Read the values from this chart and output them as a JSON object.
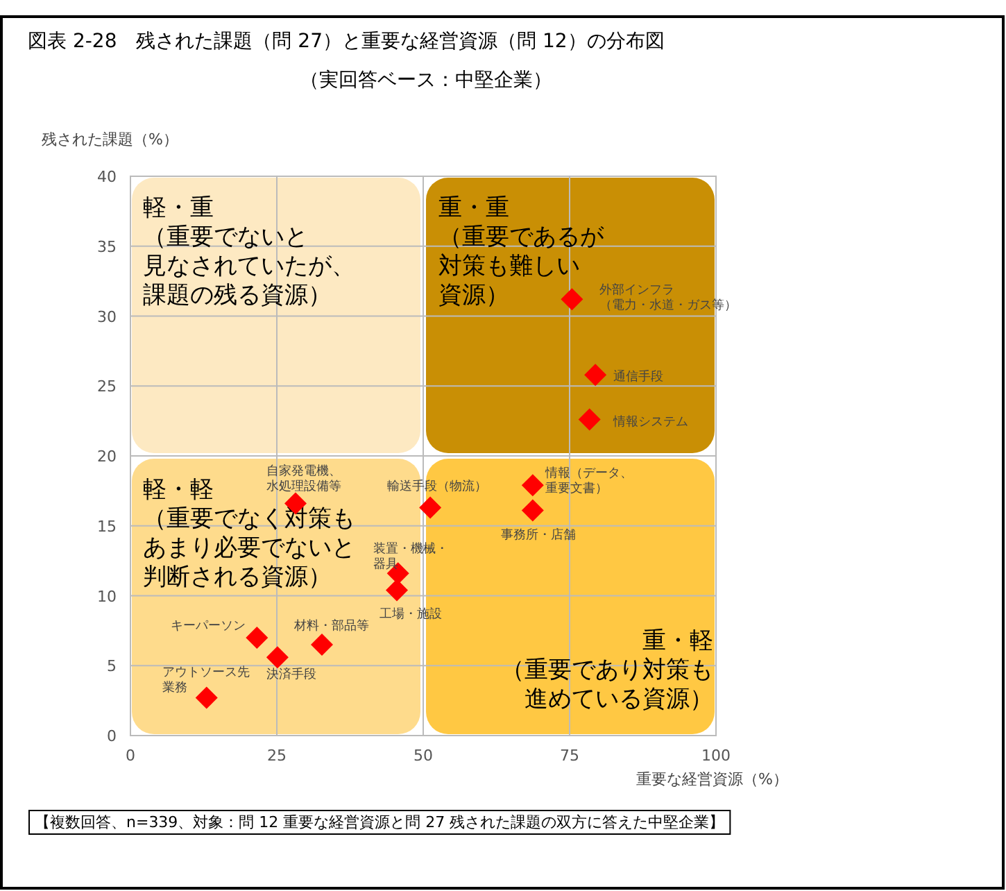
{
  "chart_data": {
    "type": "scatter",
    "title": "図表 2-28　残された課題（問 27）と重要な経営資源（問 12）の分布図",
    "subtitle": "（実回答ベース：中堅企業）",
    "xlabel": "重要な経営資源（%）",
    "ylabel": "残された課題（%）",
    "xlim": [
      0,
      100
    ],
    "xticks": [
      0,
      25,
      50,
      75,
      100
    ],
    "ylim": [
      0,
      40
    ],
    "yticks": [
      0,
      5,
      10,
      15,
      20,
      25,
      30,
      35,
      40
    ],
    "grid": true,
    "marker": "diamond",
    "series": [
      {
        "name": "外部インフラ（電力・水道・ガス等）",
        "color": "#ff0000",
        "x": [
          75.4
        ],
        "values": [
          31.2
        ]
      },
      {
        "name": "通信手段",
        "color": "#ff0000",
        "x": [
          79.4
        ],
        "values": [
          25.8
        ]
      },
      {
        "name": "情報システム",
        "color": "#ff0000",
        "x": [
          78.4
        ],
        "values": [
          22.6
        ]
      },
      {
        "name": "情報（データ、重要文書）",
        "color": "#ff0000",
        "x": [
          68.7
        ],
        "values": [
          17.9
        ]
      },
      {
        "name": "事務所・店舗",
        "color": "#ff0000",
        "x": [
          68.7
        ],
        "values": [
          16.1
        ]
      },
      {
        "name": "輸送手段（物流）",
        "color": "#ff0000",
        "x": [
          51.2
        ],
        "values": [
          16.3
        ]
      },
      {
        "name": "自家発電機、水処理設備等",
        "color": "#ff0000",
        "x": [
          28.2
        ],
        "values": [
          16.6
        ]
      },
      {
        "name": "装置・機械・器具",
        "color": "#ff0000",
        "x": [
          45.7
        ],
        "values": [
          11.6
        ]
      },
      {
        "name": "工場・施設",
        "color": "#ff0000",
        "x": [
          45.5
        ],
        "values": [
          10.4
        ]
      },
      {
        "name": "キーパーソン",
        "color": "#ff0000",
        "x": [
          21.6
        ],
        "values": [
          7.0
        ]
      },
      {
        "name": "材料・部品等",
        "color": "#ff0000",
        "x": [
          32.7
        ],
        "values": [
          6.5
        ]
      },
      {
        "name": "決済手段",
        "color": "#ff0000",
        "x": [
          25.1
        ],
        "values": [
          5.6
        ]
      },
      {
        "name": "アウトソース先業務",
        "color": "#ff0000",
        "x": [
          13.0
        ],
        "values": [
          2.7
        ]
      }
    ],
    "annotations": [
      "軽・重（重要でないと見なされていたが、課題の残る資源）",
      "重・重（重要であるが対策も難しい資源）",
      "軽・軽（重要でなく対策もあまり必要でないと判断される資源）",
      "重・軽（重要であり対策も進めている資源）",
      "【複数回答、n=339、対象：問 12 重要な経営資源と問 27 残された課題の双方に答えた中堅企業】"
    ]
  }
}
